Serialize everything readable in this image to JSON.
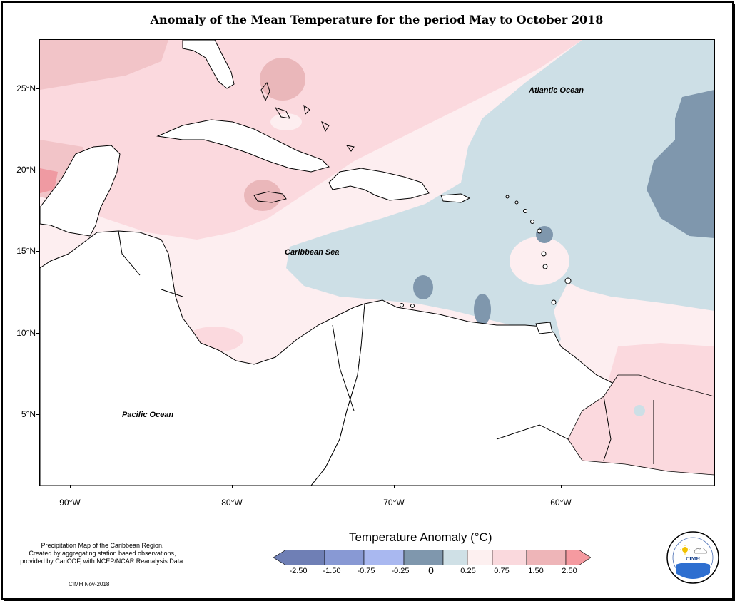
{
  "title": "Anomaly of the Mean Temperature for the period May to October 2018",
  "map": {
    "labels": {
      "atlantic": "Atlantic Ocean",
      "caribbean": "Caribbean Sea",
      "pacific": "Pacific Ocean"
    },
    "lat_ticks": [
      "25°N",
      "20°N",
      "15°N",
      "10°N",
      "5°N"
    ],
    "lon_ticks": [
      "90°W",
      "80°W",
      "70°W",
      "60°W"
    ]
  },
  "notes": {
    "line1": "Precipitation Map of the Caribbean Region.",
    "line2": "Created by aggregating station based observations,",
    "line3": "provided by CariCOF, with NCEP/NCAR Reanalysis Data.",
    "credit": "CIMH Nov-2018"
  },
  "legend": {
    "title": "Temperature Anomaly (°C)",
    "ticks": [
      "-2.50",
      "-1.50",
      "-0.75",
      "-0.25",
      "0",
      "0.25",
      "0.75",
      "1.50",
      "2.50"
    ],
    "colors": [
      "#6f7fb5",
      "#8899d4",
      "#a9b8f0",
      "#7f97ad",
      "#cfe0e6",
      "#fdf0f0",
      "#fad9dd",
      "#eeb5b8",
      "#f59aa0"
    ]
  },
  "logo": {
    "text": "CIMH"
  }
}
